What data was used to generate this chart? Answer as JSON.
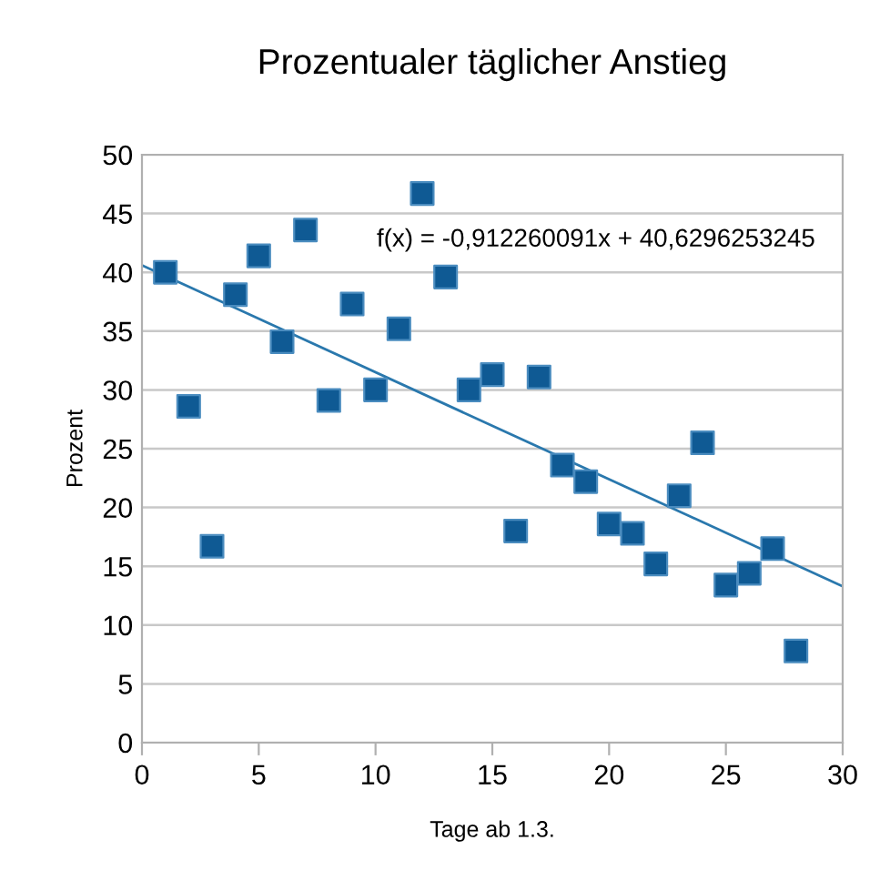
{
  "chart_data": {
    "type": "scatter",
    "title": "Prozentualer täglicher Anstieg",
    "xlabel": "Tage ab 1.3.",
    "ylabel": "Prozent",
    "xlim": [
      0,
      30
    ],
    "xticks": [
      0,
      5,
      10,
      15,
      20,
      25,
      30
    ],
    "ylim": [
      0,
      50
    ],
    "yticks": [
      0,
      5,
      10,
      15,
      20,
      25,
      30,
      35,
      40,
      45,
      50
    ],
    "grid": "y",
    "annotations": [
      "f(x) = -0,912260091x + 40,6296253245"
    ],
    "series": [
      {
        "marker": "square",
        "color": "#0f5a94",
        "x": [
          1,
          2,
          3,
          4,
          5,
          6,
          7,
          8,
          9,
          10,
          11,
          12,
          13,
          14,
          15,
          16,
          17,
          18,
          19,
          20,
          21,
          22,
          23,
          24,
          25,
          26,
          27,
          28
        ],
        "values": [
          40,
          28.6,
          16.7,
          38.1,
          41.4,
          34.1,
          43.6,
          29.1,
          37.3,
          30,
          35.2,
          46.7,
          39.6,
          30,
          31.3,
          18,
          31.1,
          23.6,
          22.2,
          18.6,
          17.8,
          15.2,
          21,
          25.5,
          13.4,
          14.4,
          16.5,
          7.8
        ]
      },
      {
        "type": "line",
        "marker": "none",
        "color": "#2a78ad",
        "x": [
          0,
          30
        ],
        "values": [
          40.6,
          13.3
        ]
      }
    ]
  }
}
